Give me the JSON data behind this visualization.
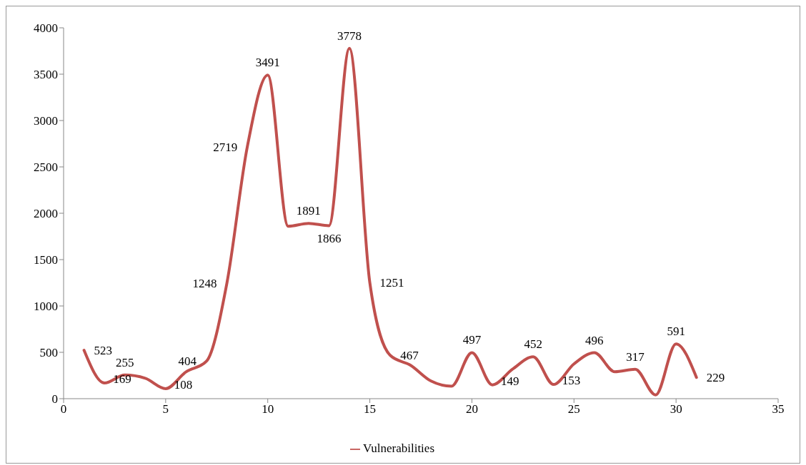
{
  "chart_data": {
    "type": "line",
    "x": [
      1,
      2,
      3,
      4,
      5,
      6,
      7,
      8,
      9,
      10,
      11,
      12,
      13,
      14,
      15,
      16,
      17,
      18,
      19,
      20,
      21,
      22,
      23,
      24,
      25,
      26,
      27,
      28,
      29,
      30,
      31
    ],
    "series": [
      {
        "name": "Vulnerabilities",
        "color": "#c0504d",
        "values": [
          523,
          169,
          255,
          220,
          108,
          290,
          404,
          1248,
          2719,
          3491,
          1860,
          1891,
          1866,
          3778,
          1251,
          467,
          360,
          190,
          135,
          497,
          149,
          320,
          452,
          153,
          375,
          496,
          290,
          317,
          40,
          591,
          229
        ],
        "value_labels": [
          "523",
          "169",
          "255",
          null,
          "108",
          null,
          "404",
          "1248",
          "2719",
          "3491",
          null,
          "1891",
          "1866",
          "3778",
          "1251",
          "467",
          null,
          null,
          null,
          "497",
          "149",
          null,
          "452",
          "153",
          null,
          "496",
          null,
          "317",
          null,
          "591",
          "229"
        ]
      }
    ],
    "xlim": [
      0,
      35
    ],
    "xticks": [
      0,
      5,
      10,
      15,
      20,
      25,
      30,
      35
    ],
    "ylim": [
      0,
      4000
    ],
    "yticks": [
      0,
      500,
      1000,
      1500,
      2000,
      2500,
      3000,
      3500,
      4000
    ],
    "grid": false,
    "legend": "bottom",
    "marker": "none",
    "line_style": "solid"
  }
}
